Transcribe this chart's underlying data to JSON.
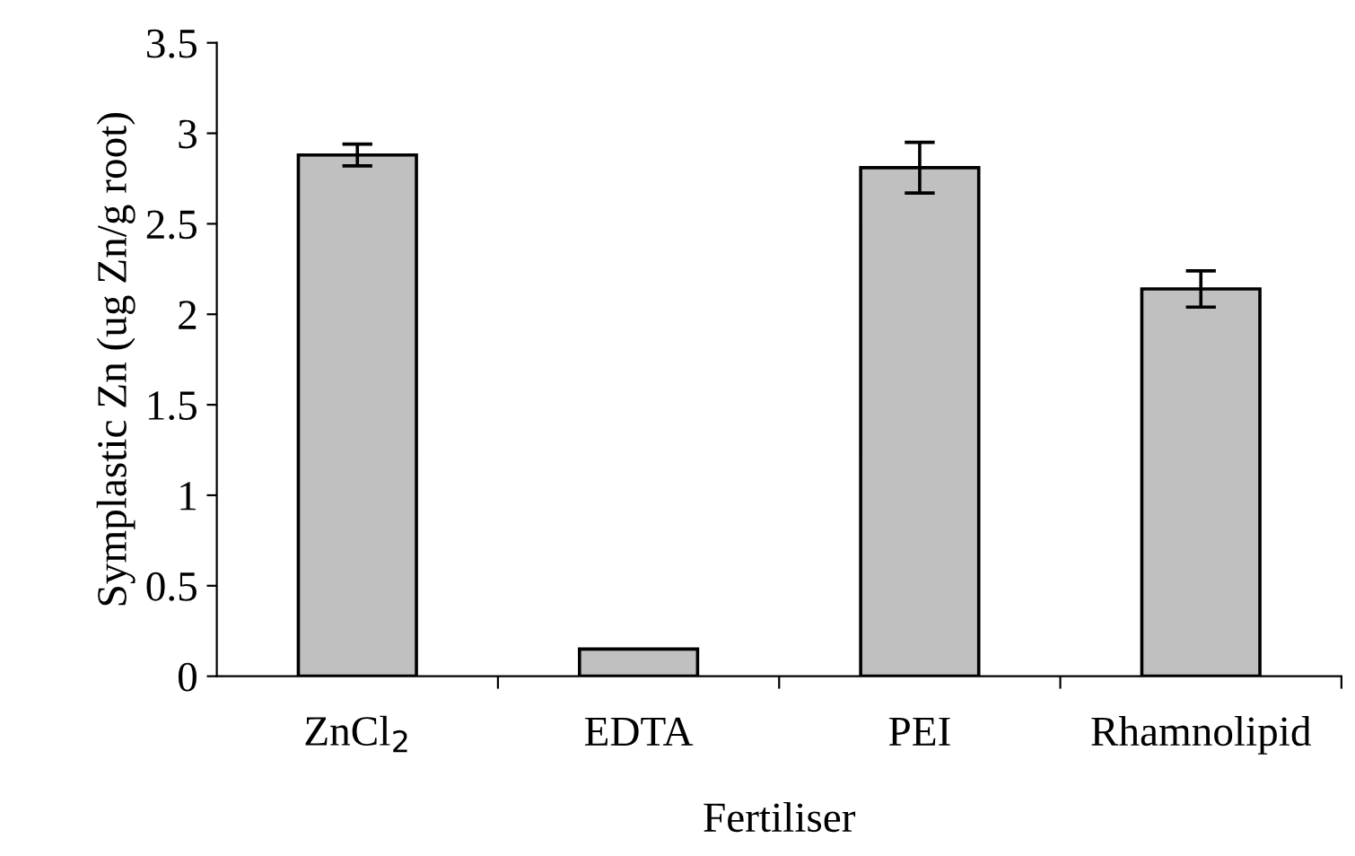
{
  "chart_data": {
    "type": "bar",
    "categories": [
      "ZnCl$_{2}$",
      "EDTA",
      "PEI",
      "Rhamnolipid"
    ],
    "values": [
      2.88,
      0.15,
      2.81,
      2.14
    ],
    "errors": [
      0.06,
      null,
      0.14,
      0.1
    ],
    "color": "#c0c0c0",
    "xlabel": "Fertiliser",
    "ylabel": "Symplastic Zn (ug Zn/g root)",
    "ylim": [
      0,
      3.5
    ],
    "yticks": [
      0,
      0.5,
      1,
      1.5,
      2,
      2.5,
      3,
      3.5
    ],
    "grid": false,
    "legend": false
  }
}
